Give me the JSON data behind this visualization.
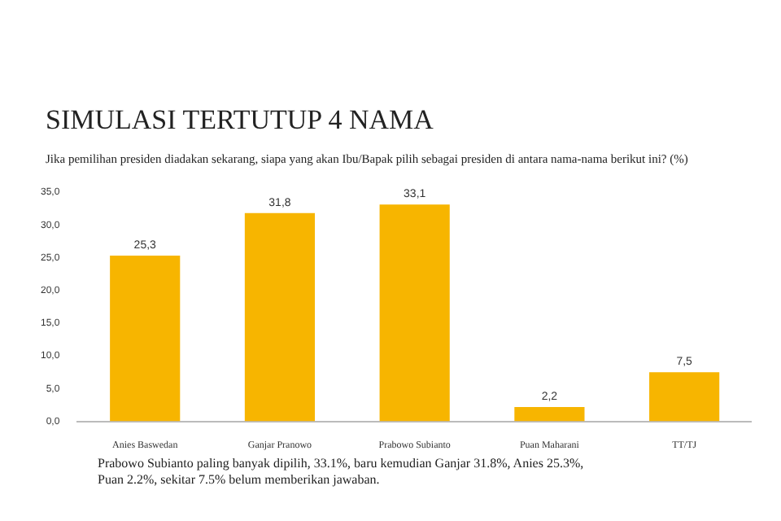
{
  "chart_data": {
    "type": "bar",
    "title": "SIMULASI TERTUTUP 4 NAMA",
    "subtitle": "Jika pemilihan presiden diadakan sekarang, siapa yang akan Ibu/Bapak pilih sebagai presiden di antara nama-nama berikut ini?  (%)",
    "categories": [
      "Anies Baswedan",
      "Ganjar Pranowo",
      "Prabowo Subianto",
      "Puan Maharani",
      "TT/TJ"
    ],
    "values": [
      25.3,
      31.8,
      33.1,
      2.2,
      7.5
    ],
    "value_labels": [
      "25,3",
      "31,8",
      "33,1",
      "2,2",
      "7,5"
    ],
    "color": "#f7b500",
    "ylim": [
      0,
      35
    ],
    "yticks": [
      {
        "value": 0,
        "label": "0,0"
      },
      {
        "value": 5,
        "label": "5,0"
      },
      {
        "value": 10,
        "label": "10,0"
      },
      {
        "value": 15,
        "label": "15,0"
      },
      {
        "value": 20,
        "label": "20,0"
      },
      {
        "value": 25,
        "label": "25,0"
      },
      {
        "value": 30,
        "label": "30,0"
      },
      {
        "value": 35,
        "label": "35,0"
      }
    ],
    "grid": false,
    "annotations": [
      "Prabowo Subianto paling banyak dipilih, 33.1%, baru kemudian Ganjar 31.8%, Anies 25.3%, Puan 2.2%, sekitar 7.5% belum memberikan jawaban."
    ]
  }
}
